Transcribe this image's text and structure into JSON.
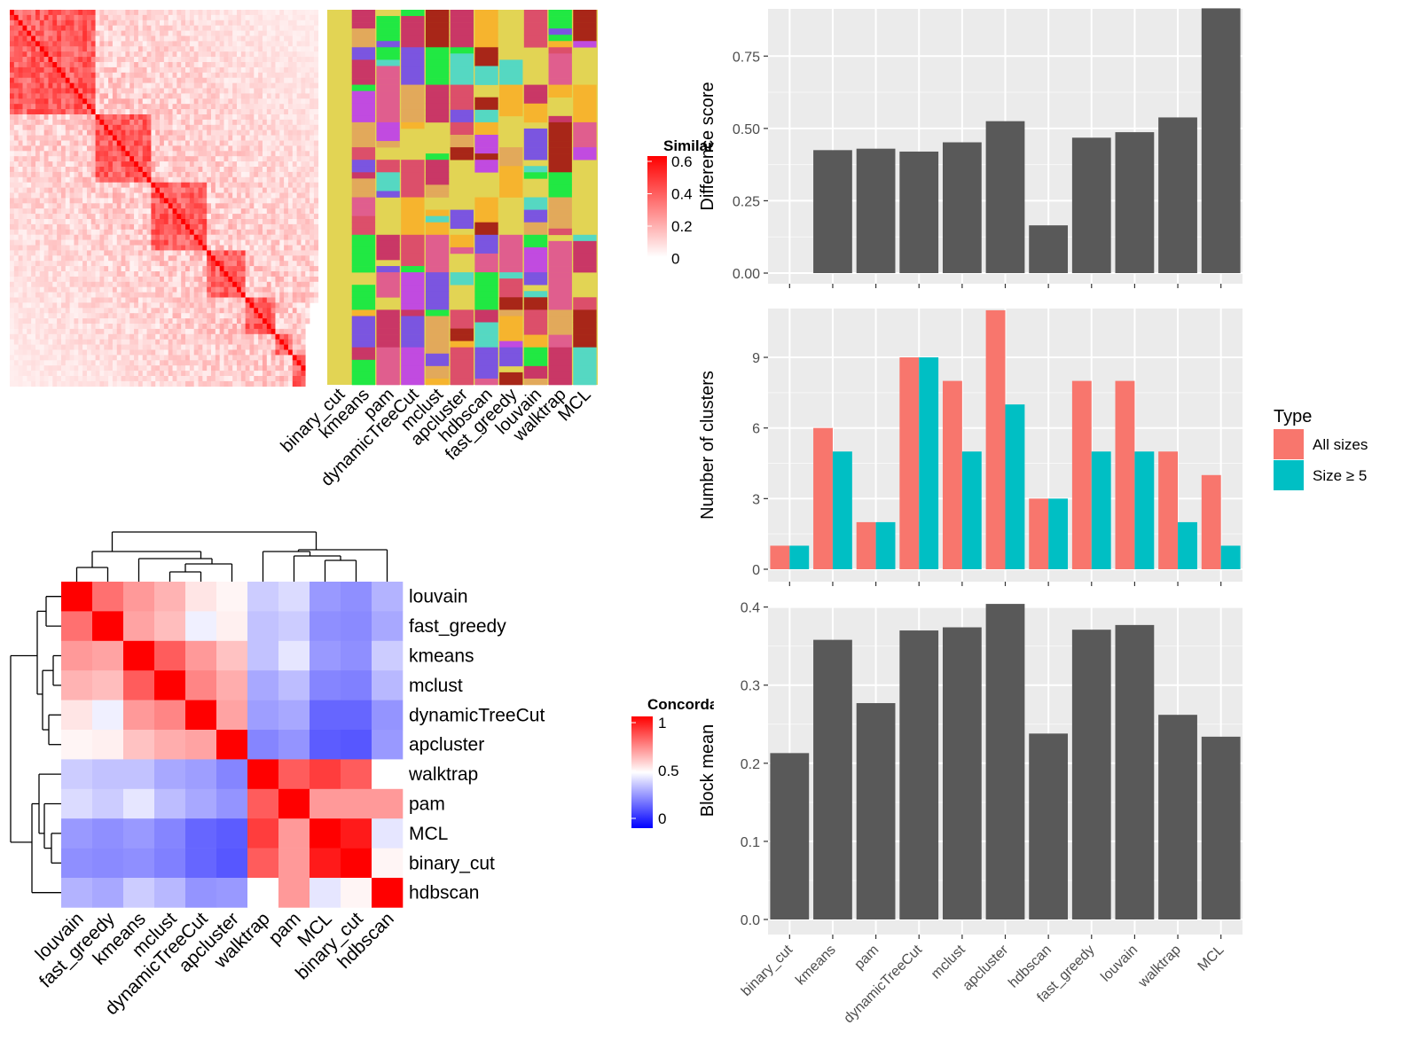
{
  "methods_order": [
    "binary_cut",
    "kmeans",
    "pam",
    "dynamicTreeCut",
    "mclust",
    "apcluster",
    "hdbscan",
    "fast_greedy",
    "louvain",
    "walktrap",
    "MCL"
  ],
  "colors": {
    "bar": "#595959",
    "panel_bg": "#ebebeb",
    "grid": "#ffffff",
    "all_sizes": "#f8766d",
    "size_ge5": "#00bfc4",
    "partition_bg": "#e2d454"
  },
  "similarity_heatmap": {
    "legend_title": "Similarity",
    "legend_ticks": [
      "0.6",
      "0.4",
      "0.2",
      "0"
    ],
    "legend_colors": [
      "#ff0000",
      "#ffffff"
    ]
  },
  "partition_panel": {
    "columns": [
      "binary_cut",
      "kmeans",
      "pam",
      "dynamicTreeCut",
      "mclust",
      "apcluster",
      "hdbscan",
      "fast_greedy",
      "louvain",
      "walktrap",
      "MCL"
    ],
    "palette": [
      "#c93766",
      "#e2a95b",
      "#f6b42e",
      "#21e843",
      "#7b55e0",
      "#c14be0",
      "#a82618",
      "#dc4f6a",
      "#55d8c2",
      "#e05e8e"
    ]
  },
  "concordance_heatmap": {
    "legend_title": "Concordance",
    "legend_ticks": [
      "1",
      "0.5",
      "0"
    ],
    "legend_colors": [
      "#ff0000",
      "#ffffff",
      "#0000ff"
    ],
    "rows": [
      "louvain",
      "fast_greedy",
      "kmeans",
      "mclust",
      "dynamicTreeCut",
      "apcluster",
      "walktrap",
      "pam",
      "MCL",
      "binary_cut",
      "hdbscan"
    ],
    "columns": [
      "louvain",
      "fast_greedy",
      "kmeans",
      "mclust",
      "dynamicTreeCut",
      "apcluster",
      "walktrap",
      "pam",
      "MCL",
      "binary_cut",
      "hdbscan"
    ],
    "values": [
      [
        1.0,
        0.78,
        0.7,
        0.65,
        0.55,
        0.52,
        0.4,
        0.43,
        0.3,
        0.28,
        0.35
      ],
      [
        0.78,
        1.0,
        0.68,
        0.63,
        0.47,
        0.53,
        0.38,
        0.4,
        0.28,
        0.27,
        0.33
      ],
      [
        0.7,
        0.68,
        1.0,
        0.82,
        0.7,
        0.62,
        0.38,
        0.45,
        0.3,
        0.28,
        0.4
      ],
      [
        0.65,
        0.63,
        0.82,
        1.0,
        0.74,
        0.66,
        0.33,
        0.37,
        0.26,
        0.25,
        0.36
      ],
      [
        0.55,
        0.47,
        0.7,
        0.74,
        1.0,
        0.68,
        0.31,
        0.33,
        0.2,
        0.2,
        0.29
      ],
      [
        0.52,
        0.53,
        0.62,
        0.66,
        0.68,
        1.0,
        0.26,
        0.29,
        0.18,
        0.17,
        0.3
      ],
      [
        0.4,
        0.38,
        0.38,
        0.33,
        0.31,
        0.26,
        1.0,
        0.82,
        0.88,
        0.82,
        0.5
      ],
      [
        0.43,
        0.4,
        0.45,
        0.37,
        0.33,
        0.29,
        0.82,
        1.0,
        0.7,
        0.7,
        0.7
      ],
      [
        0.3,
        0.28,
        0.3,
        0.26,
        0.2,
        0.18,
        0.88,
        0.7,
        1.0,
        0.95,
        0.45
      ],
      [
        0.28,
        0.27,
        0.28,
        0.25,
        0.2,
        0.17,
        0.82,
        0.7,
        0.95,
        1.0,
        0.52
      ],
      [
        0.35,
        0.33,
        0.4,
        0.36,
        0.29,
        0.3,
        0.5,
        0.7,
        0.45,
        0.52,
        1.0
      ]
    ]
  },
  "chart_data": [
    {
      "type": "bar",
      "categories": [
        "binary_cut",
        "kmeans",
        "pam",
        "dynamicTreeCut",
        "mclust",
        "apcluster",
        "hdbscan",
        "fast_greedy",
        "louvain",
        "walktrap",
        "MCL"
      ],
      "values": [
        0,
        0.425,
        0.43,
        0.42,
        0.452,
        0.525,
        0.165,
        0.468,
        0.487,
        0.538,
        0.915
      ],
      "ylabel": "Difference score",
      "ylim": [
        0,
        0.95
      ],
      "yticks": [
        "0.00",
        "0.25",
        "0.50",
        "0.75"
      ],
      "grid": true
    },
    {
      "type": "bar",
      "categories": [
        "binary_cut",
        "kmeans",
        "pam",
        "dynamicTreeCut",
        "mclust",
        "apcluster",
        "hdbscan",
        "fast_greedy",
        "louvain",
        "walktrap",
        "MCL"
      ],
      "series": [
        {
          "name": "All sizes",
          "values": [
            1,
            6,
            2,
            9,
            8,
            11,
            3,
            8,
            8,
            5,
            4
          ]
        },
        {
          "name": "Size ≥ 5",
          "values": [
            1,
            5,
            2,
            9,
            5,
            7,
            3,
            5,
            5,
            2,
            1
          ]
        }
      ],
      "ylabel": "Number of clusters",
      "ylim": [
        0,
        11.6
      ],
      "yticks": [
        "0",
        "3",
        "6",
        "9"
      ],
      "legend_title": "Type",
      "legend_position": "right",
      "grid": true
    },
    {
      "type": "bar",
      "categories": [
        "binary_cut",
        "kmeans",
        "pam",
        "dynamicTreeCut",
        "mclust",
        "apcluster",
        "hdbscan",
        "fast_greedy",
        "louvain",
        "walktrap",
        "MCL"
      ],
      "values": [
        0.213,
        0.358,
        0.277,
        0.37,
        0.374,
        0.404,
        0.238,
        0.371,
        0.377,
        0.262,
        0.234
      ],
      "ylabel": "Block mean",
      "ylim": [
        0,
        0.42
      ],
      "yticks": [
        "0.0",
        "0.1",
        "0.2",
        "0.3",
        "0.4"
      ],
      "grid": true
    }
  ]
}
